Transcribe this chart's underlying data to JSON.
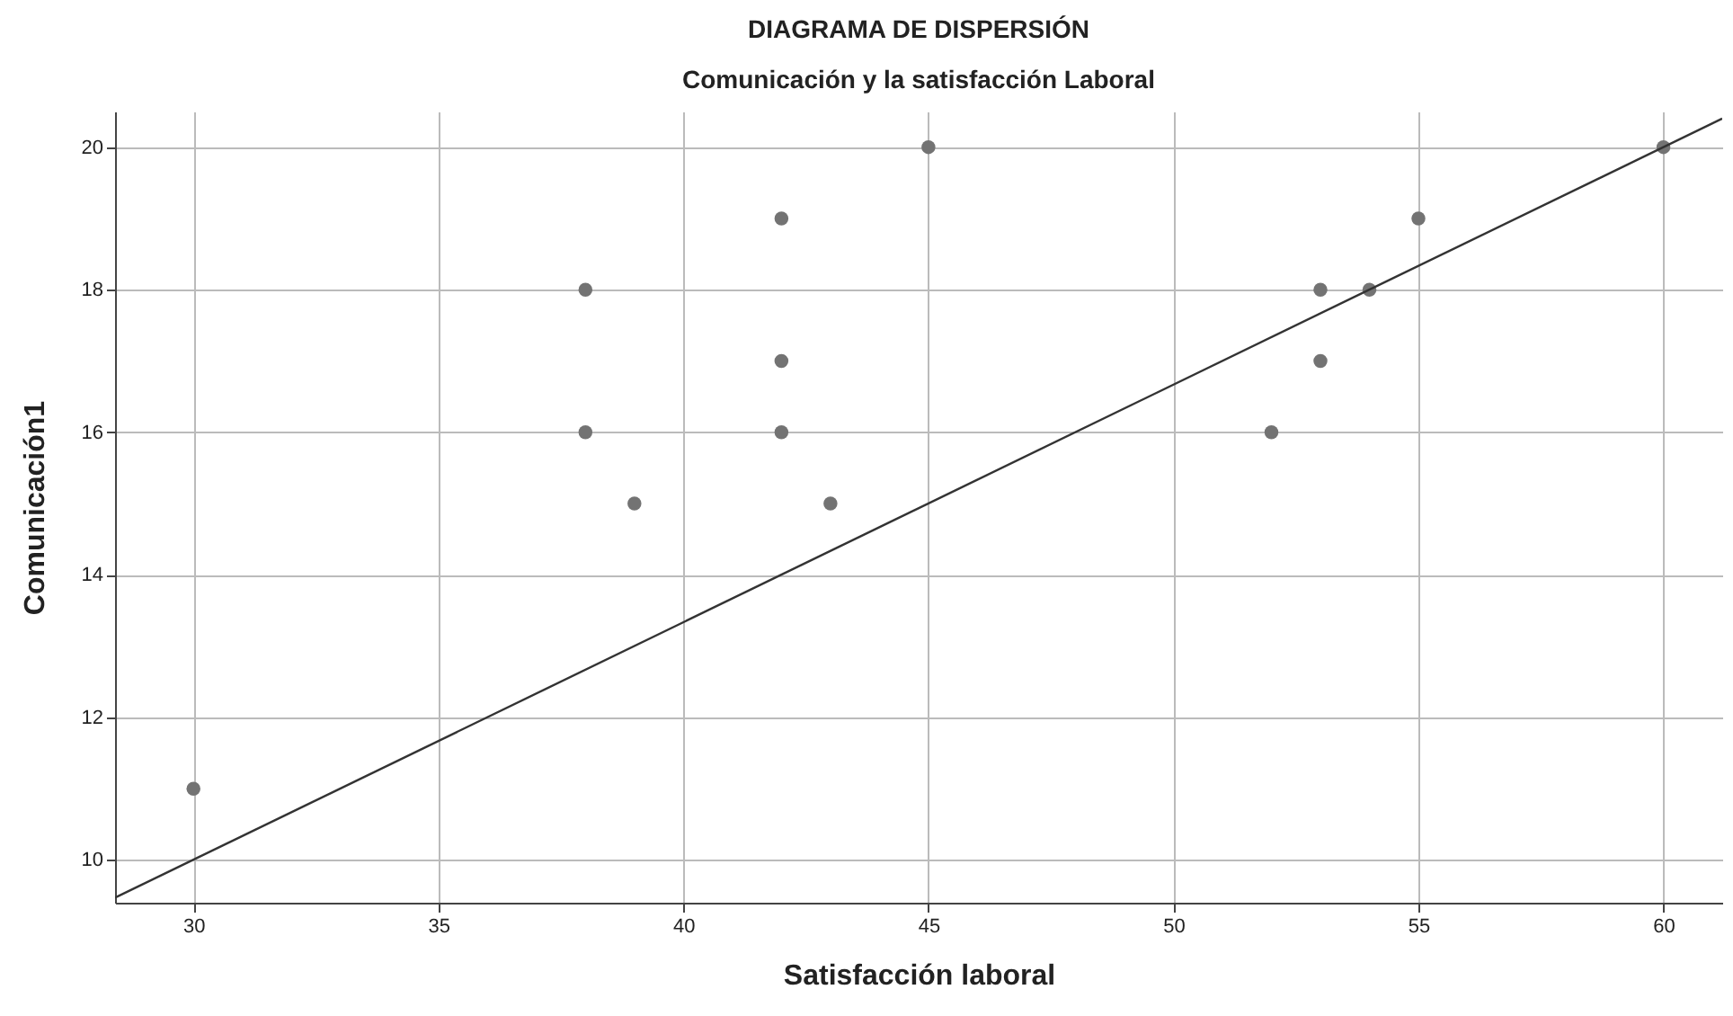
{
  "chart_data": {
    "type": "scatter",
    "title": "DIAGRAMA DE DISPERSIÓN",
    "subtitle": "Comunicación y la satisfacción Laboral",
    "xlabel": "Satisfacción laboral",
    "ylabel": "Comunicación1",
    "xlim": [
      28.4,
      61.2
    ],
    "ylim": [
      9.4,
      20.5
    ],
    "xticks": [
      30,
      35,
      40,
      45,
      50,
      55,
      60
    ],
    "yticks": [
      10,
      12,
      14,
      16,
      18,
      20
    ],
    "grid": true,
    "series": [
      {
        "color": "#737373",
        "marker": "circle",
        "x": [
          30,
          38,
          38,
          39,
          42,
          42,
          42,
          43,
          45,
          52,
          53,
          53,
          54,
          55,
          60
        ],
        "values": [
          11,
          18,
          16,
          15,
          19,
          17,
          16,
          15,
          20,
          16,
          18,
          17,
          18,
          19,
          20
        ]
      },
      {
        "type": "line",
        "color": "#333333",
        "line_style": "solid",
        "x": [
          28.4,
          61.2
        ],
        "values": [
          9.47,
          20.4
        ]
      }
    ]
  }
}
